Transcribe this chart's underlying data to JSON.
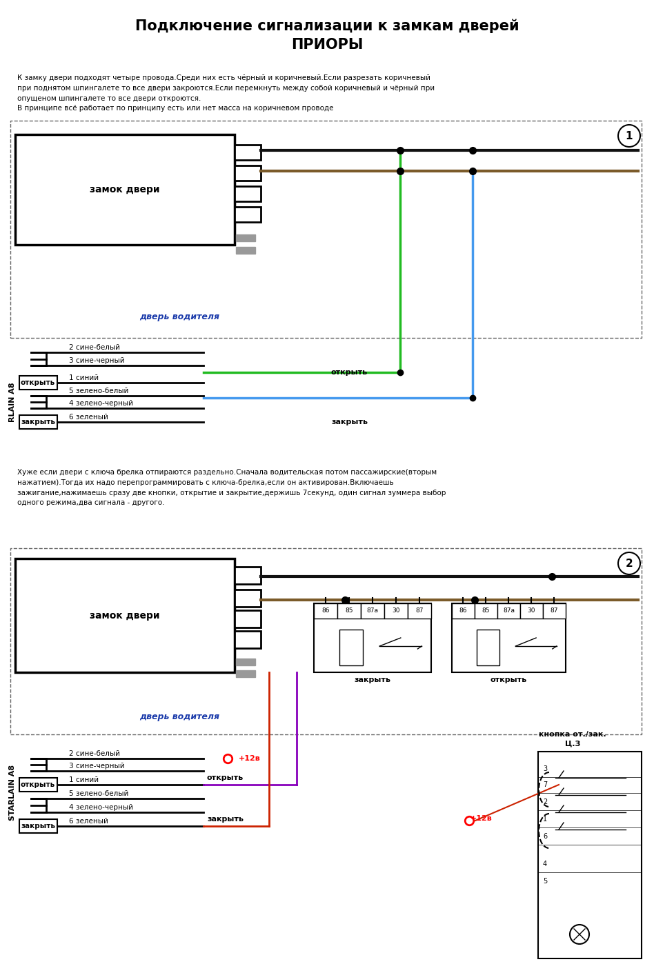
{
  "title_line1": "Подключение сигнализации к замкам дверей",
  "title_line2": "ПРИОРЫ",
  "bg_color": "#ffffff",
  "text_color": "#000000",
  "desc1": "К замку двери подходят четыре провода.Среди них есть чёрный и коричневый.Если разрезать коричневый\nпри поднятом шпингалете то все двери закроются.Если перемкнуть между собой коричневый и чёрный при\nопущеном шпингалете то все двери откроются.\nВ принципе всё работает по принципу есть или нет масса на коричневом проводе",
  "desc2": "Хуже если двери с ключа брелка отпираются раздельно.Сначала водительская потом пассажирские(вторым\nнажатием).Тогда их надо перепрограммировать с ключа-брелка,если он активирован.Включаешь\nзажигание,нажимаешь сразу две кнопки, открытие и закрытие,держишь 7секунд, один сигнал зуммера выбор\nодного режима,два сигнала - другого.",
  "lock_label": "замок двери",
  "driver_door": "дверь водителя",
  "rlain": "RLAIN A8",
  "starlain": "STARLAIN A8",
  "wires": [
    "2 сине-белый",
    "3 сине-черный",
    "1 синий",
    "5 зелено-белый",
    "4 зелено-черный",
    "6 зеленый"
  ],
  "open_label": "открыть",
  "close_label": "закрыть",
  "plus12v": "+12в",
  "knopka_title": "кнопка от./зак.",
  "knopka_sub": "Ц.З",
  "relay_nums_left": [
    "86",
    "85",
    "87a",
    "30",
    "87"
  ],
  "relay_nums_right": [
    "86",
    "85",
    "87a",
    "30",
    "87"
  ],
  "color_black": "#111111",
  "color_brown": "#7B5B2A",
  "color_green": "#22bb22",
  "color_blue": "#4499ee",
  "color_red": "#cc2200",
  "color_purple": "#8800bb",
  "color_gray": "#999999",
  "color_dkblue": "#1a3aaa",
  "color_dash": "#666666"
}
